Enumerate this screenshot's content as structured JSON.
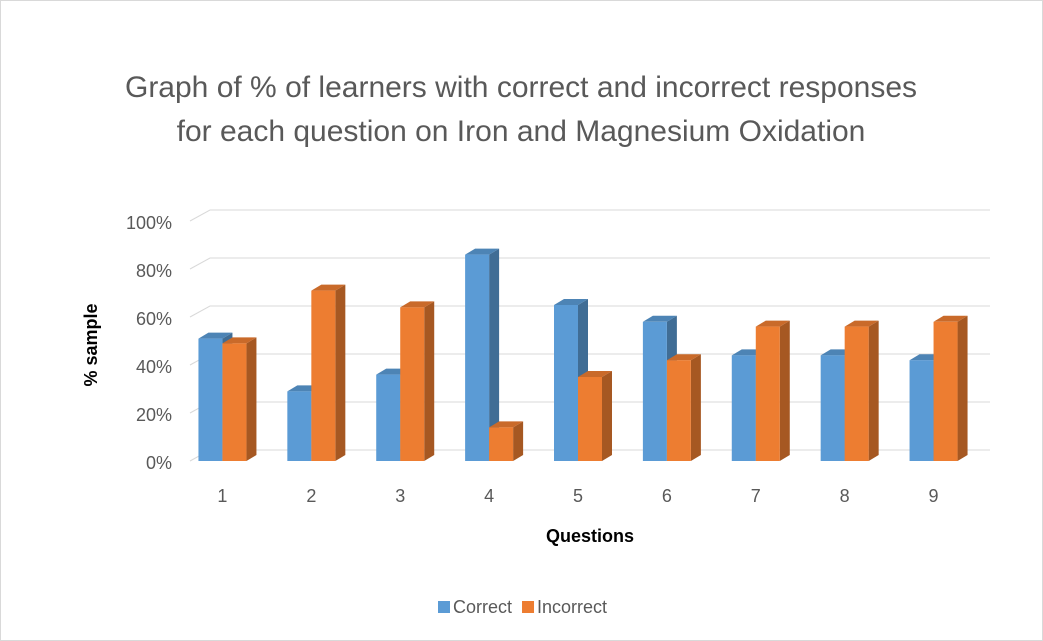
{
  "chart_data": {
    "type": "bar3d",
    "title": "Graph of % of learners with correct and incorrect responses for each question on Iron and Magnesium Oxidation",
    "xlabel": "Questions",
    "ylabel": "% sample",
    "categories": [
      "1",
      "2",
      "3",
      "4",
      "5",
      "6",
      "7",
      "8",
      "9"
    ],
    "series": [
      {
        "name": "Correct",
        "color": "#5b9bd5",
        "values": [
          51,
          29,
          36,
          86,
          65,
          58,
          44,
          44,
          42
        ]
      },
      {
        "name": "Incorrect",
        "color": "#ed7d31",
        "values": [
          49,
          71,
          64,
          14,
          35,
          42,
          56,
          56,
          58
        ]
      }
    ],
    "ylim": [
      0,
      100
    ],
    "yticks": [
      {
        "value": 0,
        "label": "0%"
      },
      {
        "value": 20,
        "label": "20%"
      },
      {
        "value": 40,
        "label": "40%"
      },
      {
        "value": 60,
        "label": "60%"
      },
      {
        "value": 80,
        "label": "80%"
      },
      {
        "value": 100,
        "label": "100%"
      }
    ],
    "grid": true,
    "legend": "bottom"
  }
}
